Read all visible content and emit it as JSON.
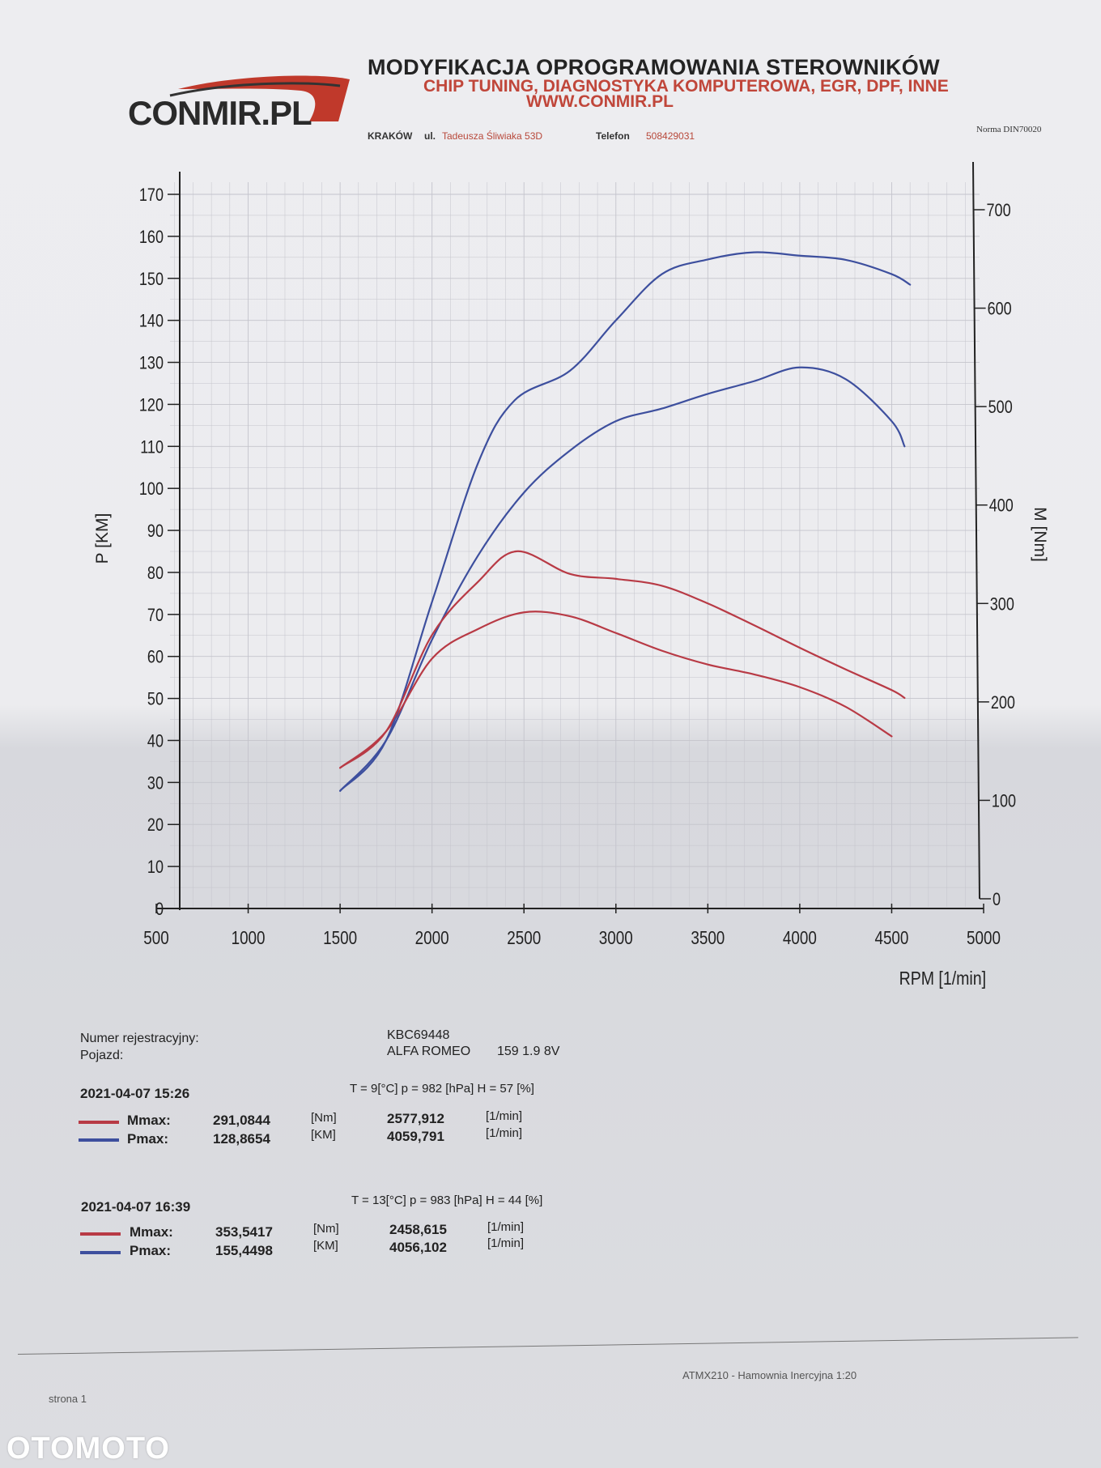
{
  "header": {
    "logo_text": "CONMIR.PL",
    "title": "MODYFIKACJA OPROGRAMOWANIA STEROWNIKÓW",
    "subtitle": "CHIP TUNING, DIAGNOSTYKA KOMPUTEROWA, EGR, DPF, INNE",
    "website": "WWW.CONMIR.PL",
    "city": "KRAKÓW",
    "street_prefix": "ul.",
    "street": "Tadeusza Śliwiaka 53D",
    "phone_label": "Telefon",
    "phone": "508429031",
    "norm": "Norma DIN70020"
  },
  "colors": {
    "torque": "#b83a45",
    "power": "#3d4f9e",
    "axis": "#222222",
    "grid": "#c4c4cc"
  },
  "chart_data": {
    "type": "line",
    "xlabel": "RPM [1/min]",
    "ylabel_left": "P [KM]",
    "ylabel_right": "M [Nm]",
    "xlim": [
      500,
      5000
    ],
    "ylim_left": [
      0,
      170
    ],
    "ylim_right": [
      0,
      700
    ],
    "x_ticks": [
      "500",
      "1000",
      "1500",
      "2000",
      "2500",
      "3000",
      "3500",
      "4000",
      "4500",
      "5000"
    ],
    "y_left_ticks": [
      "0",
      "10",
      "20",
      "30",
      "40",
      "50",
      "60",
      "70",
      "80",
      "90",
      "100",
      "110",
      "120",
      "130",
      "140",
      "150",
      "160",
      "170"
    ],
    "y_right_ticks": [
      "0",
      "100",
      "200",
      "300",
      "400",
      "500",
      "600",
      "700"
    ],
    "grid": true,
    "series": [
      {
        "kind": "power",
        "run": 1,
        "color": "#3d4f9e",
        "x": [
          1500,
          1750,
          2000,
          2250,
          2500,
          2750,
          3000,
          3250,
          3500,
          3750,
          4000,
          4250,
          4500,
          4570
        ],
        "y": [
          28,
          40,
          64,
          84,
          99,
          109,
          116,
          119,
          122.5,
          125.5,
          128.8,
          126,
          116,
          110
        ]
      },
      {
        "kind": "torque",
        "run": 1,
        "color": "#b83a45",
        "x": [
          1500,
          1750,
          2000,
          2250,
          2500,
          2750,
          3000,
          3250,
          3500,
          3750,
          4000,
          4250,
          4500
        ],
        "y": [
          133,
          170,
          244,
          274,
          291,
          287,
          270,
          252,
          238,
          228,
          215,
          195,
          165
        ]
      },
      {
        "kind": "power",
        "run": 2,
        "color": "#3d4f9e",
        "x": [
          1500,
          1750,
          2000,
          2250,
          2450,
          2750,
          3000,
          3250,
          3500,
          3750,
          4000,
          4250,
          4500,
          4600
        ],
        "y": [
          28,
          40,
          73,
          106,
          121,
          128,
          140,
          151,
          154.5,
          156.2,
          155.4,
          154.4,
          151,
          148.5
        ]
      },
      {
        "kind": "torque",
        "run": 2,
        "color": "#b83a45",
        "x": [
          1500,
          1750,
          2000,
          2250,
          2460,
          2750,
          3000,
          3250,
          3500,
          3750,
          4000,
          4250,
          4500,
          4570
        ],
        "y": [
          133,
          170,
          268,
          322,
          353,
          330,
          325,
          318,
          300,
          278,
          255,
          233,
          212,
          204
        ]
      }
    ]
  },
  "info": {
    "reg_label": "Numer rejestracyjny:",
    "reg_value": "KBC69448",
    "vehicle_label": "Pojazd:",
    "vehicle_make": "ALFA ROMEO",
    "vehicle_model": "159 1.9 8V",
    "runs": [
      {
        "datetime": "2021-04-07  15:26",
        "conditions": "T = 9[°C]  p = 982 [hPa]  H = 57 [%]",
        "mmax_label": "Mmax:",
        "mmax": "291,0844",
        "mmax_unit": "[Nm]",
        "mmax_rpm": "2577,912",
        "mmax_rpm_unit": "[1/min]",
        "pmax_label": "Pmax:",
        "pmax": "128,8654",
        "pmax_unit": "[KM]",
        "pmax_rpm": "4059,791",
        "pmax_rpm_unit": "[1/min]"
      },
      {
        "datetime": "2021-04-07  16:39",
        "conditions": "T = 13[°C]  p = 983 [hPa]  H = 44 [%]",
        "mmax_label": "Mmax:",
        "mmax": "353,5417",
        "mmax_unit": "[Nm]",
        "mmax_rpm": "2458,615",
        "mmax_rpm_unit": "[1/min]",
        "pmax_label": "Pmax:",
        "pmax": "155,4498",
        "pmax_unit": "[KM]",
        "pmax_rpm": "4056,102",
        "pmax_rpm_unit": "[1/min]"
      }
    ]
  },
  "footer": {
    "device": "ATMX210 - Hamownia Inercyjna 1:20",
    "page": "strona 1"
  },
  "watermark": "OTOMOTO"
}
